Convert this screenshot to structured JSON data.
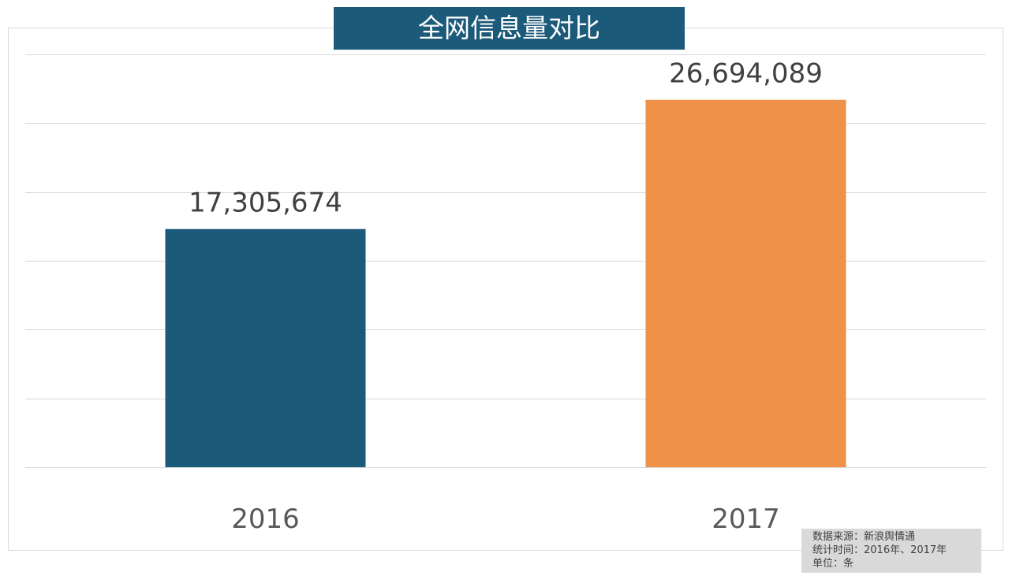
{
  "chart_data": {
    "type": "bar",
    "title": "全网信息量对比",
    "categories": [
      "2016",
      "2017"
    ],
    "values": [
      17305674,
      26694089
    ],
    "value_labels": [
      "17,305,674",
      "26,694,089"
    ],
    "colors": [
      "#1c5a7a",
      "#f0914a"
    ],
    "ylim": [
      0,
      30000000
    ],
    "ytick_step": 5000000,
    "grid": true,
    "xlabel": "",
    "ylabel": ""
  },
  "source_note": {
    "lines": [
      "数据来源：新浪舆情通",
      "统计时间：2016年、2017年",
      "单位：条"
    ]
  }
}
